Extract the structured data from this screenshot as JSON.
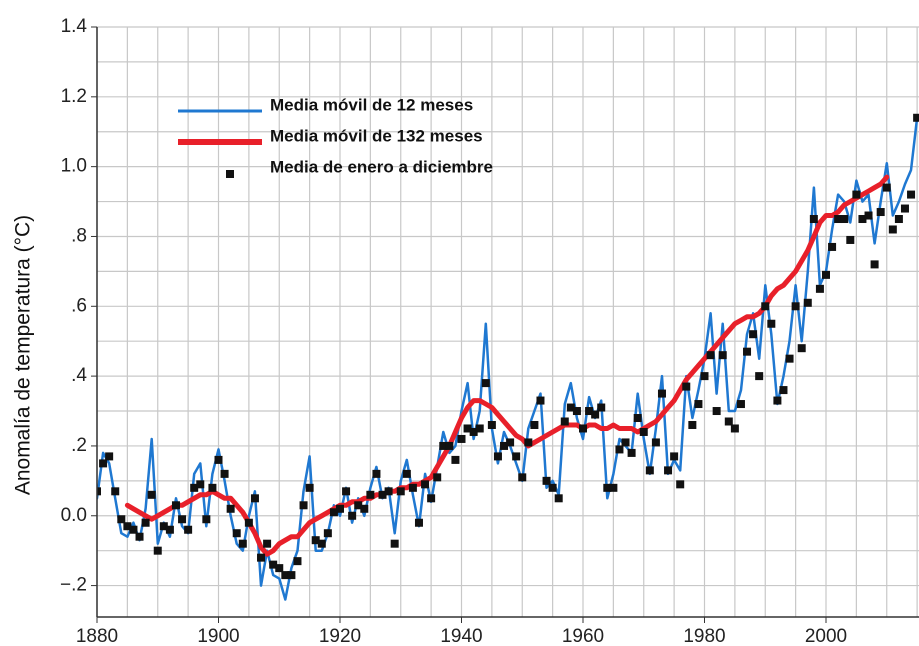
{
  "chart_data": {
    "type": "line",
    "ylabel": "Anomalía de temperatura (°C)",
    "xlim": [
      1880,
      2015
    ],
    "ylim": [
      -0.29,
      1.4
    ],
    "xticks": [
      1880,
      1900,
      1920,
      1940,
      1960,
      1980,
      2000
    ],
    "yticks": [
      {
        "value": -0.2,
        "label": "−.2"
      },
      {
        "value": 0,
        "label": "0.0"
      },
      {
        "value": 0.2,
        "label": ".2"
      },
      {
        "value": 0.4,
        "label": ".4"
      },
      {
        "value": 0.6,
        "label": ".6"
      },
      {
        "value": 0.8,
        "label": ".8"
      },
      {
        "value": 1.0,
        "label": "1.0"
      },
      1.2,
      1.4
    ],
    "xminorticks": [
      1885,
      1890,
      1895,
      1905,
      1910,
      1915,
      1925,
      1930,
      1935,
      1945,
      1950,
      1955,
      1965,
      1970,
      1975,
      1985,
      1990,
      1995,
      2005,
      2010,
      2015
    ],
    "yminorticks": [
      -0.1,
      0.1,
      0.3,
      0.5,
      0.7,
      0.9,
      1.1,
      1.3
    ],
    "grid": true,
    "legend": "upper left",
    "series": [
      {
        "name": "Media móvil de 12 meses",
        "color": "#1f78d1",
        "kind": "line",
        "x": [
          1880,
          1881,
          1882,
          1883,
          1884,
          1885,
          1886,
          1887,
          1888,
          1889,
          1890,
          1891,
          1892,
          1893,
          1894,
          1895,
          1896,
          1897,
          1898,
          1899,
          1900,
          1901,
          1902,
          1903,
          1904,
          1905,
          1906,
          1907,
          1908,
          1909,
          1910,
          1911,
          1912,
          1913,
          1914,
          1915,
          1916,
          1917,
          1918,
          1919,
          1920,
          1921,
          1922,
          1923,
          1924,
          1925,
          1926,
          1927,
          1928,
          1929,
          1930,
          1931,
          1932,
          1933,
          1934,
          1935,
          1936,
          1937,
          1938,
          1939,
          1940,
          1941,
          1942,
          1943,
          1944,
          1945,
          1946,
          1947,
          1948,
          1949,
          1950,
          1951,
          1952,
          1953,
          1954,
          1955,
          1956,
          1957,
          1958,
          1959,
          1960,
          1961,
          1962,
          1963,
          1964,
          1965,
          1966,
          1967,
          1968,
          1969,
          1970,
          1971,
          1972,
          1973,
          1974,
          1975,
          1976,
          1977,
          1978,
          1979,
          1980,
          1981,
          1982,
          1983,
          1984,
          1985,
          1986,
          1987,
          1988,
          1989,
          1990,
          1991,
          1992,
          1993,
          1994,
          1995,
          1996,
          1997,
          1998,
          1999,
          2000,
          2001,
          2002,
          2003,
          2004,
          2005,
          2006,
          2007,
          2008,
          2009,
          2010,
          2011,
          2012,
          2013,
          2014,
          2015
        ],
        "values": [
          0.05,
          0.18,
          0.15,
          0.05,
          -0.05,
          -0.06,
          -0.02,
          -0.07,
          0.02,
          0.22,
          -0.08,
          -0.02,
          -0.06,
          0.05,
          -0.03,
          -0.05,
          0.12,
          0.15,
          -0.03,
          0.12,
          0.19,
          0.1,
          0.0,
          -0.08,
          -0.1,
          0.0,
          0.07,
          -0.2,
          -0.1,
          -0.17,
          -0.18,
          -0.24,
          -0.15,
          -0.1,
          0.07,
          0.17,
          -0.1,
          -0.1,
          -0.05,
          0.03,
          0.0,
          0.08,
          -0.02,
          0.05,
          0.0,
          0.08,
          0.14,
          0.05,
          0.08,
          -0.05,
          0.1,
          0.16,
          0.06,
          -0.03,
          0.12,
          0.04,
          0.14,
          0.24,
          0.18,
          0.2,
          0.3,
          0.38,
          0.22,
          0.3,
          0.55,
          0.25,
          0.15,
          0.24,
          0.2,
          0.15,
          0.1,
          0.25,
          0.3,
          0.35,
          0.08,
          0.1,
          0.06,
          0.32,
          0.38,
          0.28,
          0.22,
          0.34,
          0.28,
          0.33,
          0.05,
          0.12,
          0.22,
          0.2,
          0.18,
          0.35,
          0.22,
          0.12,
          0.25,
          0.4,
          0.12,
          0.16,
          0.13,
          0.4,
          0.28,
          0.36,
          0.45,
          0.58,
          0.35,
          0.55,
          0.3,
          0.3,
          0.36,
          0.52,
          0.58,
          0.45,
          0.66,
          0.52,
          0.32,
          0.4,
          0.5,
          0.66,
          0.5,
          0.7,
          0.94,
          0.66,
          0.7,
          0.82,
          0.92,
          0.9,
          0.84,
          0.96,
          0.9,
          0.92,
          0.78,
          0.9,
          1.01,
          0.86,
          0.9,
          0.95,
          0.99,
          1.14
        ]
      },
      {
        "name": "Media móvil de 132 meses",
        "color": "#e8202a",
        "kind": "line",
        "x": [
          1885,
          1886,
          1887,
          1888,
          1889,
          1890,
          1891,
          1892,
          1893,
          1894,
          1895,
          1896,
          1897,
          1898,
          1899,
          1900,
          1901,
          1902,
          1903,
          1904,
          1905,
          1906,
          1907,
          1908,
          1909,
          1910,
          1911,
          1912,
          1913,
          1914,
          1915,
          1916,
          1917,
          1918,
          1919,
          1920,
          1921,
          1922,
          1923,
          1924,
          1925,
          1926,
          1927,
          1928,
          1929,
          1930,
          1931,
          1932,
          1933,
          1934,
          1935,
          1936,
          1937,
          1938,
          1939,
          1940,
          1941,
          1942,
          1943,
          1944,
          1945,
          1946,
          1947,
          1948,
          1949,
          1950,
          1951,
          1952,
          1953,
          1954,
          1955,
          1956,
          1957,
          1958,
          1959,
          1960,
          1961,
          1962,
          1963,
          1964,
          1965,
          1966,
          1967,
          1968,
          1969,
          1970,
          1971,
          1972,
          1973,
          1974,
          1975,
          1976,
          1977,
          1978,
          1979,
          1980,
          1981,
          1982,
          1983,
          1984,
          1985,
          1986,
          1987,
          1988,
          1989,
          1990,
          1991,
          1992,
          1993,
          1994,
          1995,
          1996,
          1997,
          1998,
          1999,
          2000,
          2001,
          2002,
          2003,
          2004,
          2005,
          2006,
          2007,
          2008,
          2009,
          2010
        ],
        "values": [
          0.03,
          0.02,
          0.01,
          0,
          -0.01,
          0,
          0.01,
          0.02,
          0.03,
          0.03,
          0.04,
          0.05,
          0.06,
          0.06,
          0.07,
          0.06,
          0.05,
          0.05,
          0.03,
          0.01,
          -0.02,
          -0.05,
          -0.09,
          -0.11,
          -0.1,
          -0.08,
          -0.07,
          -0.06,
          -0.06,
          -0.04,
          -0.02,
          -0.01,
          0,
          0.01,
          0.02,
          0.03,
          0.03,
          0.04,
          0.04,
          0.05,
          0.05,
          0.06,
          0.06,
          0.07,
          0.07,
          0.08,
          0.08,
          0.09,
          0.09,
          0.1,
          0.11,
          0.14,
          0.17,
          0.2,
          0.24,
          0.28,
          0.31,
          0.33,
          0.33,
          0.32,
          0.31,
          0.29,
          0.27,
          0.25,
          0.23,
          0.22,
          0.2,
          0.21,
          0.22,
          0.23,
          0.24,
          0.25,
          0.26,
          0.26,
          0.26,
          0.25,
          0.26,
          0.26,
          0.25,
          0.25,
          0.26,
          0.25,
          0.25,
          0.25,
          0.24,
          0.25,
          0.26,
          0.27,
          0.29,
          0.31,
          0.33,
          0.36,
          0.39,
          0.41,
          0.43,
          0.45,
          0.47,
          0.49,
          0.51,
          0.53,
          0.55,
          0.56,
          0.57,
          0.57,
          0.58,
          0.6,
          0.63,
          0.65,
          0.66,
          0.68,
          0.7,
          0.73,
          0.76,
          0.8,
          0.84,
          0.86,
          0.86,
          0.87,
          0.89,
          0.9,
          0.91,
          0.92,
          0.93,
          0.94,
          0.95,
          0.97
        ]
      },
      {
        "name": "Media de enero a diciembre",
        "color": "#111111",
        "kind": "scatter",
        "x": [
          1880,
          1881,
          1882,
          1883,
          1884,
          1885,
          1886,
          1887,
          1888,
          1889,
          1890,
          1891,
          1892,
          1893,
          1894,
          1895,
          1896,
          1897,
          1898,
          1899,
          1900,
          1901,
          1902,
          1903,
          1904,
          1905,
          1906,
          1907,
          1908,
          1909,
          1910,
          1911,
          1912,
          1913,
          1914,
          1915,
          1916,
          1917,
          1918,
          1919,
          1920,
          1921,
          1922,
          1923,
          1924,
          1925,
          1926,
          1927,
          1928,
          1929,
          1930,
          1931,
          1932,
          1933,
          1934,
          1935,
          1936,
          1937,
          1938,
          1939,
          1940,
          1941,
          1942,
          1943,
          1944,
          1945,
          1946,
          1947,
          1948,
          1949,
          1950,
          1951,
          1952,
          1953,
          1954,
          1955,
          1956,
          1957,
          1958,
          1959,
          1960,
          1961,
          1962,
          1963,
          1964,
          1965,
          1966,
          1967,
          1968,
          1969,
          1970,
          1971,
          1972,
          1973,
          1974,
          1975,
          1976,
          1977,
          1978,
          1979,
          1980,
          1981,
          1982,
          1983,
          1984,
          1985,
          1986,
          1987,
          1988,
          1989,
          1990,
          1991,
          1992,
          1993,
          1994,
          1995,
          1996,
          1997,
          1998,
          1999,
          2000,
          2001,
          2002,
          2003,
          2004,
          2005,
          2006,
          2007,
          2008,
          2009,
          2010,
          2011,
          2012,
          2013,
          2014,
          2015
        ],
        "values": [
          0.07,
          0.15,
          0.17,
          0.07,
          -0.01,
          -0.03,
          -0.04,
          -0.06,
          -0.02,
          0.06,
          -0.1,
          -0.03,
          -0.04,
          0.03,
          -0.01,
          -0.04,
          0.08,
          0.09,
          -0.01,
          0.08,
          0.16,
          0.12,
          0.02,
          -0.05,
          -0.08,
          -0.02,
          0.05,
          -0.12,
          -0.08,
          -0.14,
          -0.15,
          -0.17,
          -0.17,
          -0.13,
          0.03,
          0.08,
          -0.07,
          -0.08,
          -0.05,
          0.01,
          0.02,
          0.07,
          0,
          0.03,
          0.02,
          0.06,
          0.12,
          0.06,
          0.07,
          -0.08,
          0.07,
          0.12,
          0.08,
          -0.02,
          0.09,
          0.05,
          0.11,
          0.2,
          0.2,
          0.16,
          0.22,
          0.25,
          0.24,
          0.25,
          0.38,
          0.26,
          0.17,
          0.2,
          0.21,
          0.17,
          0.11,
          0.21,
          0.26,
          0.33,
          0.1,
          0.08,
          0.05,
          0.27,
          0.31,
          0.3,
          0.25,
          0.3,
          0.29,
          0.31,
          0.08,
          0.08,
          0.19,
          0.21,
          0.18,
          0.28,
          0.24,
          0.13,
          0.21,
          0.35,
          0.13,
          0.17,
          0.09,
          0.37,
          0.26,
          0.32,
          0.4,
          0.46,
          0.3,
          0.46,
          0.27,
          0.25,
          0.32,
          0.47,
          0.52,
          0.4,
          0.6,
          0.55,
          0.33,
          0.36,
          0.45,
          0.6,
          0.48,
          0.61,
          0.85,
          0.65,
          0.69,
          0.77,
          0.85,
          0.85,
          0.79,
          0.92,
          0.85,
          0.86,
          0.72,
          0.87,
          0.94,
          0.82,
          0.85,
          0.88,
          0.92,
          1.14
        ]
      }
    ]
  }
}
